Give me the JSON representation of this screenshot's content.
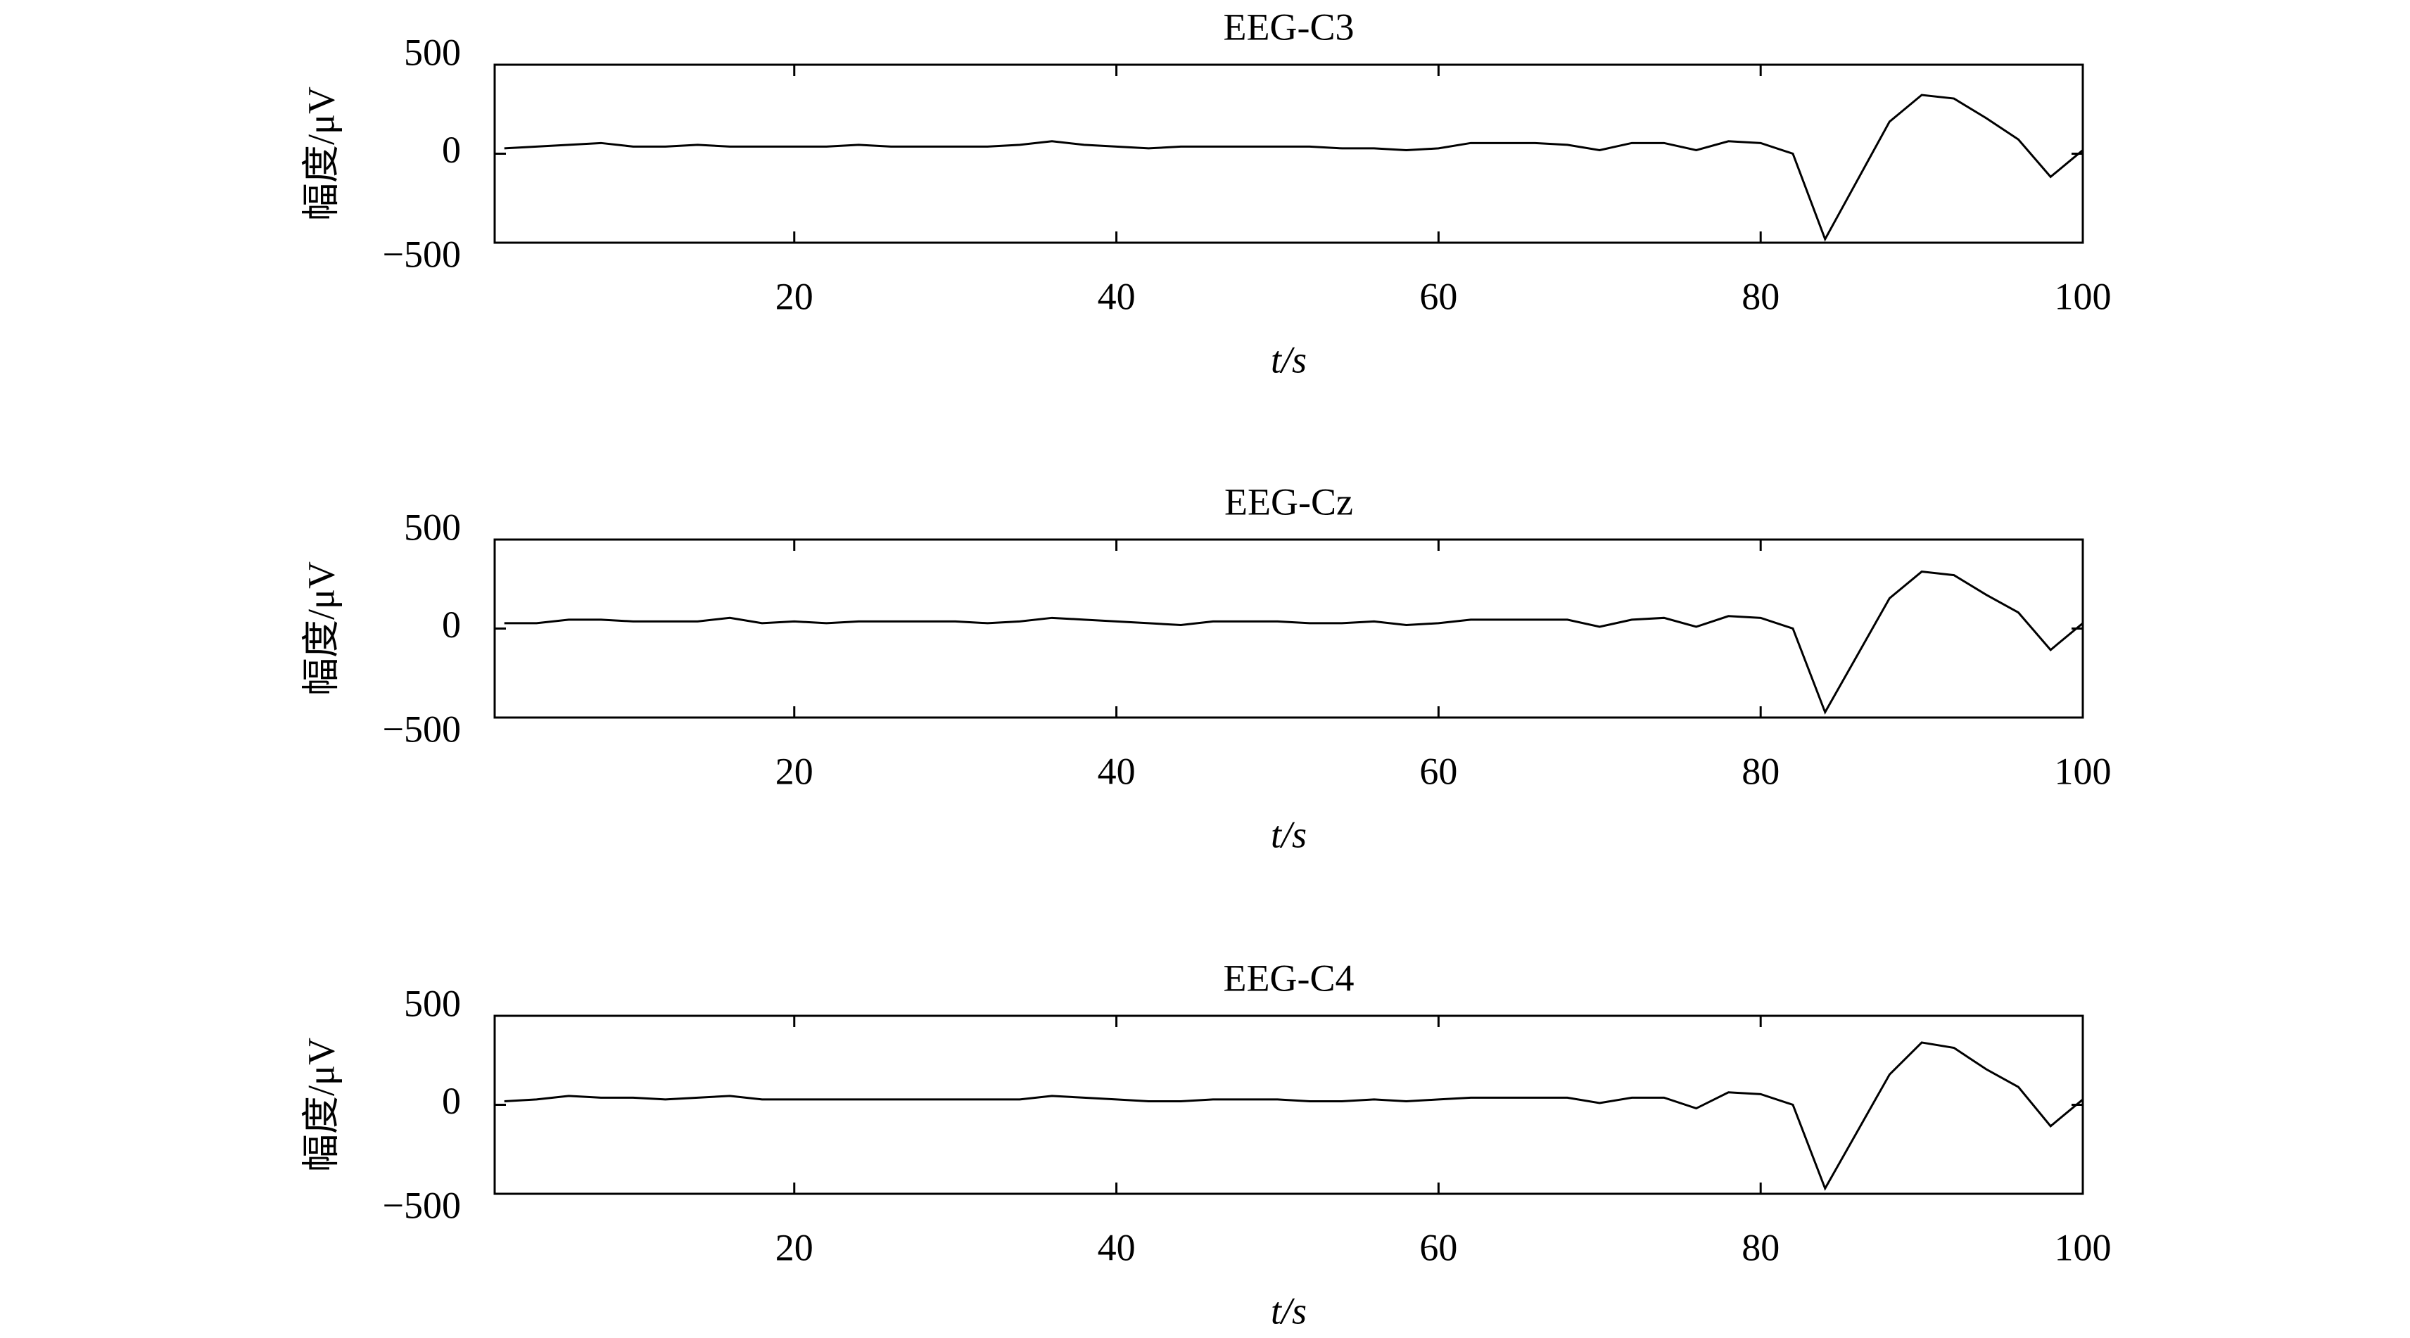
{
  "chart_data": [
    {
      "type": "line",
      "title": "EEG-C3",
      "x_label": "t/s",
      "y_label": "幅度/μV",
      "x": [
        2,
        4,
        6,
        8,
        10,
        12,
        14,
        16,
        18,
        20,
        22,
        24,
        26,
        28,
        30,
        32,
        34,
        36,
        38,
        40,
        42,
        44,
        46,
        48,
        50,
        52,
        54,
        56,
        58,
        60,
        62,
        64,
        66,
        68,
        70,
        72,
        74,
        76,
        78,
        80,
        82,
        84,
        86,
        88,
        90,
        92,
        94,
        96,
        98,
        100
      ],
      "series": [
        {
          "name": "EEG-C3",
          "color": "#000000",
          "values": [
            30,
            40,
            50,
            60,
            40,
            40,
            50,
            40,
            40,
            40,
            40,
            50,
            40,
            40,
            40,
            40,
            50,
            70,
            50,
            40,
            30,
            40,
            40,
            40,
            40,
            40,
            30,
            30,
            20,
            30,
            60,
            60,
            60,
            50,
            20,
            60,
            60,
            20,
            70,
            60,
            0,
            -480,
            -150,
            180,
            330,
            310,
            200,
            80,
            -130,
            20
          ]
        }
      ],
      "xlim": [
        1.4,
        100
      ],
      "xticks": [
        20,
        40,
        60,
        80,
        100
      ],
      "ylim": [
        -500,
        500
      ],
      "yticks": [
        {
          "value": -500,
          "label": "−500"
        },
        0,
        500
      ],
      "grid": false
    },
    {
      "type": "line",
      "title": "EEG-Cz",
      "x_label": "t/s",
      "y_label": "幅度/μV",
      "x": [
        2,
        4,
        6,
        8,
        10,
        12,
        14,
        16,
        18,
        20,
        22,
        24,
        26,
        28,
        30,
        32,
        34,
        36,
        38,
        40,
        42,
        44,
        46,
        48,
        50,
        52,
        54,
        56,
        58,
        60,
        62,
        64,
        66,
        68,
        70,
        72,
        74,
        76,
        78,
        80,
        82,
        84,
        86,
        88,
        90,
        92,
        94,
        96,
        98,
        100
      ],
      "series": [
        {
          "name": "EEG-Cz",
          "color": "#000000",
          "values": [
            30,
            30,
            50,
            50,
            40,
            40,
            40,
            60,
            30,
            40,
            30,
            40,
            40,
            40,
            40,
            30,
            40,
            60,
            50,
            40,
            30,
            20,
            40,
            40,
            40,
            30,
            30,
            40,
            20,
            30,
            50,
            50,
            50,
            50,
            10,
            50,
            60,
            10,
            70,
            60,
            0,
            -470,
            -150,
            170,
            320,
            300,
            190,
            90,
            -120,
            30
          ]
        }
      ],
      "xlim": [
        1.4,
        100
      ],
      "xticks": [
        20,
        40,
        60,
        80,
        100
      ],
      "ylim": [
        -500,
        500
      ],
      "yticks": [
        {
          "value": -500,
          "label": "−500"
        },
        0,
        500
      ],
      "grid": false
    },
    {
      "type": "line",
      "title": "EEG-C4",
      "x_label": "t/s",
      "y_label": "幅度/μV",
      "x": [
        2,
        4,
        6,
        8,
        10,
        12,
        14,
        16,
        18,
        20,
        22,
        24,
        26,
        28,
        30,
        32,
        34,
        36,
        38,
        40,
        42,
        44,
        46,
        48,
        50,
        52,
        54,
        56,
        58,
        60,
        62,
        64,
        66,
        68,
        70,
        72,
        74,
        76,
        78,
        80,
        82,
        84,
        86,
        88,
        90,
        92,
        94,
        96,
        98,
        100
      ],
      "series": [
        {
          "name": "EEG-C4",
          "color": "#000000",
          "values": [
            20,
            30,
            50,
            40,
            40,
            30,
            40,
            50,
            30,
            30,
            30,
            30,
            30,
            30,
            30,
            30,
            30,
            50,
            40,
            30,
            20,
            20,
            30,
            30,
            30,
            20,
            20,
            30,
            20,
            30,
            40,
            40,
            40,
            40,
            10,
            40,
            40,
            -20,
            70,
            60,
            0,
            -470,
            -150,
            170,
            350,
            320,
            200,
            100,
            -120,
            30
          ]
        }
      ],
      "xlim": [
        1.4,
        100
      ],
      "xticks": [
        20,
        40,
        60,
        80,
        100
      ],
      "ylim": [
        -500,
        500
      ],
      "yticks": [
        {
          "value": -500,
          "label": "−500"
        },
        0,
        500
      ],
      "grid": false
    }
  ]
}
